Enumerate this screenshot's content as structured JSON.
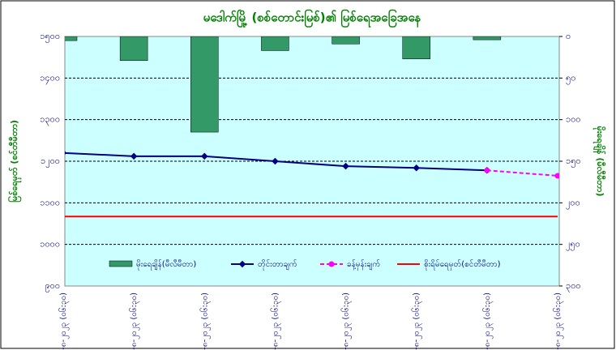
{
  "chart_data": {
    "type": "combo",
    "title": "မဒေါက်မြို့ (စစ်တောင်းမြစ်)၏ မြစ်ရေအခြေအနေ",
    "y_label": "မြစ်ရေမှတ် (စင်တီမီတာ)",
    "y2_label": "မိုးရေချိန် (မီလီမီတာ)",
    "categories": [
      "၁၁-၈-၂၀၂၃ (၀၆:၃၀)",
      "၁၂-၈-၂၀၂၃ (၀၆:၃၀)",
      "၁၃-၈-၂၀၂၃ (၀၆:၃၀)",
      "၁၄-၈-၂၀၂၃ (၀၆:၃၀)",
      "၁၅-၈-၂၀၂၃ (၀၆:၃၀)",
      "၁၆-၈-၂၀၂၃ (၀၆:၃၀)",
      "၁၇-၈-၂၀၂၃ (၀၆:၃၀)",
      "၁၈-၈-၂၀၂၃ (၀၆:၃၀)"
    ],
    "series": [
      {
        "name": "မိုးရေချိန်(မီလီမီတာ)",
        "type": "bar",
        "axis": "y2",
        "color": "#339966",
        "values": [
          5,
          29,
          115,
          17,
          9,
          27,
          4,
          0
        ]
      },
      {
        "name": "တိုင်းတာချက်",
        "type": "line",
        "color": "#000080",
        "values": [
          1220,
          1212,
          1212,
          1200,
          1188,
          1184,
          1178,
          null
        ]
      },
      {
        "name": "ခန့်မှန်းချက်",
        "type": "line",
        "dashed": true,
        "color": "#ff00ff",
        "values": [
          null,
          null,
          null,
          null,
          null,
          null,
          1178,
          1165
        ]
      },
      {
        "name": "စိုးရိမ်ရေမှတ်(စင်တီမီတာ)",
        "type": "line",
        "color": "#ff0000",
        "values": [
          1067,
          1067,
          1067,
          1067,
          1067,
          1067,
          1067,
          1067
        ]
      }
    ],
    "ylim": [
      900,
      1500
    ],
    "yticks": [
      {
        "value": 900,
        "label": "၉၀၀"
      },
      {
        "value": 1000,
        "label": "၁၀၀၀"
      },
      {
        "value": 1100,
        "label": "၁၁၀၀"
      },
      {
        "value": 1200,
        "label": "၁၂၀၀"
      },
      {
        "value": 1300,
        "label": "၁၃၀၀"
      },
      {
        "value": 1400,
        "label": "၁၄၀၀"
      },
      {
        "value": 1500,
        "label": "၁၅၀၀"
      }
    ],
    "y2lim": [
      300,
      0
    ],
    "y2ticks": [
      {
        "value": 0,
        "label": "၀"
      },
      {
        "value": 50,
        "label": "၅၀"
      },
      {
        "value": 100,
        "label": "၁၀၀"
      },
      {
        "value": 150,
        "label": "၁၅၀"
      },
      {
        "value": 200,
        "label": "၂၀၀"
      },
      {
        "value": 250,
        "label": "၂၅၀"
      },
      {
        "value": 300,
        "label": "၃၀၀"
      }
    ],
    "grid": true
  }
}
